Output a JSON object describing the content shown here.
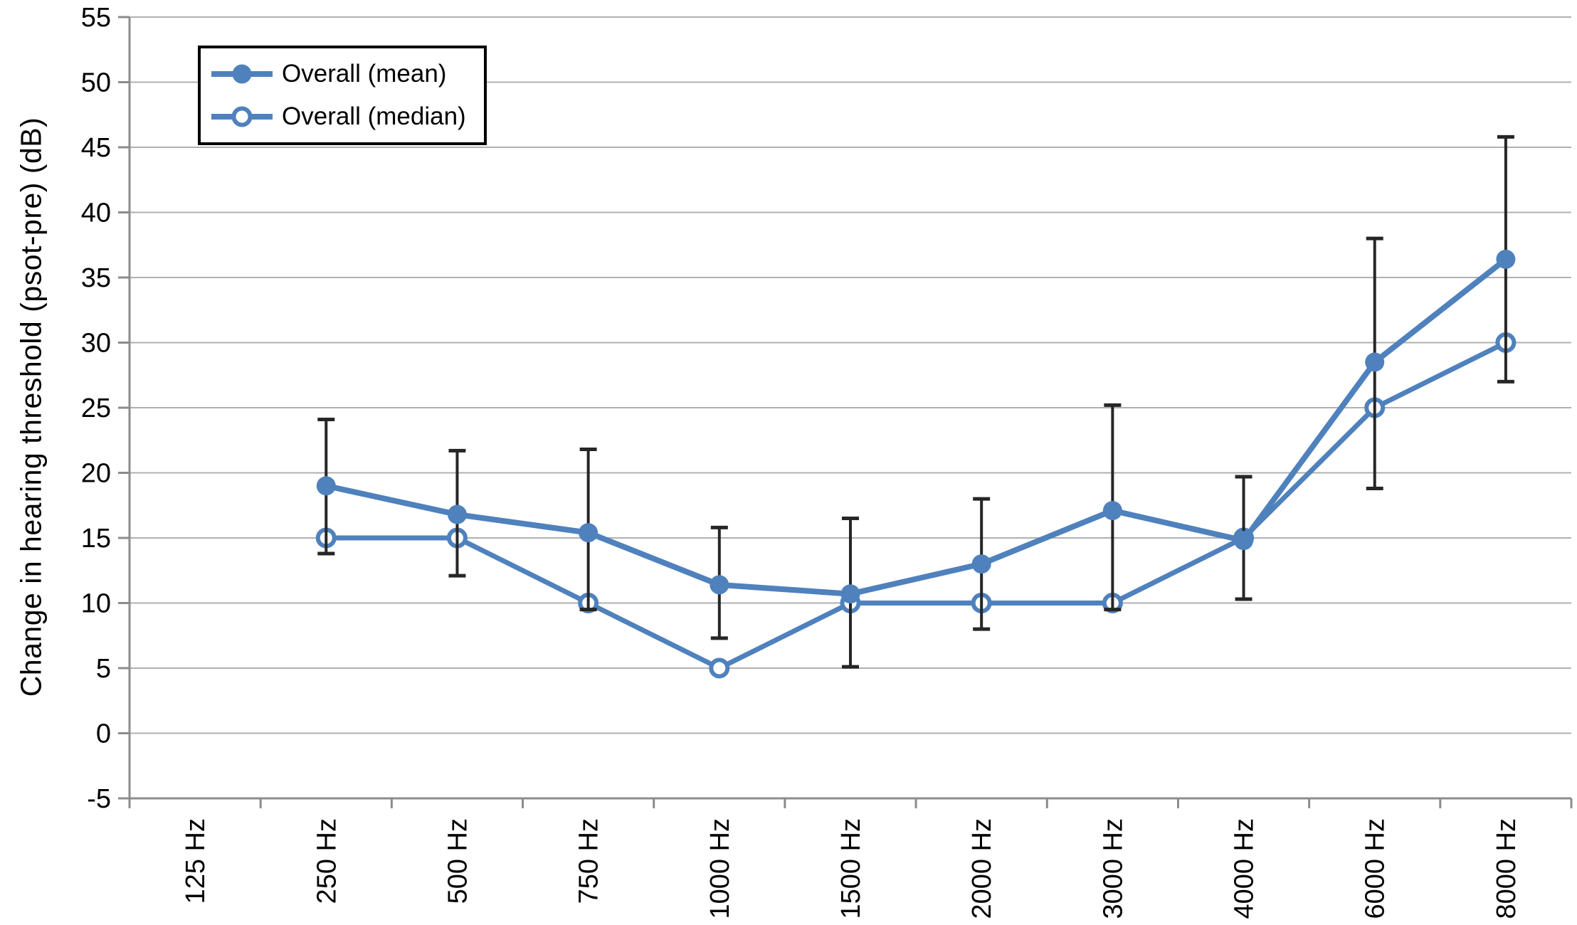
{
  "chart_data": {
    "type": "line",
    "title": "",
    "xlabel": "",
    "ylabel": "Change in hearing threshold (psot-pre) (dB)",
    "categories": [
      "125 Hz",
      "250 Hz",
      "500 Hz",
      "750 Hz",
      "1000 Hz",
      "1500 Hz",
      "2000 Hz",
      "3000 Hz",
      "4000 Hz",
      "6000 Hz",
      "8000 Hz"
    ],
    "ylim": [
      -5,
      55
    ],
    "ytick_step": 5,
    "grid": true,
    "legend_position": "top-left",
    "series": [
      {
        "name": "Overall (mean)",
        "marker": "filled-circle",
        "values": [
          null,
          19.0,
          16.8,
          15.4,
          11.4,
          10.7,
          13.0,
          17.1,
          14.8,
          28.5,
          36.4
        ],
        "error_low": [
          null,
          13.8,
          12.1,
          9.5,
          7.3,
          5.1,
          8.0,
          9.5,
          10.3,
          18.8,
          27.0
        ],
        "error_high": [
          null,
          24.1,
          21.7,
          21.8,
          15.8,
          16.5,
          18.0,
          25.2,
          19.7,
          38.0,
          45.8
        ]
      },
      {
        "name": "Overall (median)",
        "marker": "open-circle",
        "values": [
          null,
          15,
          15,
          10,
          5,
          10,
          10,
          10,
          15,
          25,
          30
        ]
      }
    ],
    "colors": {
      "series_blue": "#4f81bd",
      "error_bar": "#262626",
      "gridline": "#b0b0b0",
      "axis": "#8c8c8c",
      "text": "#000000",
      "legend_border": "#000000",
      "background": "#ffffff"
    }
  }
}
